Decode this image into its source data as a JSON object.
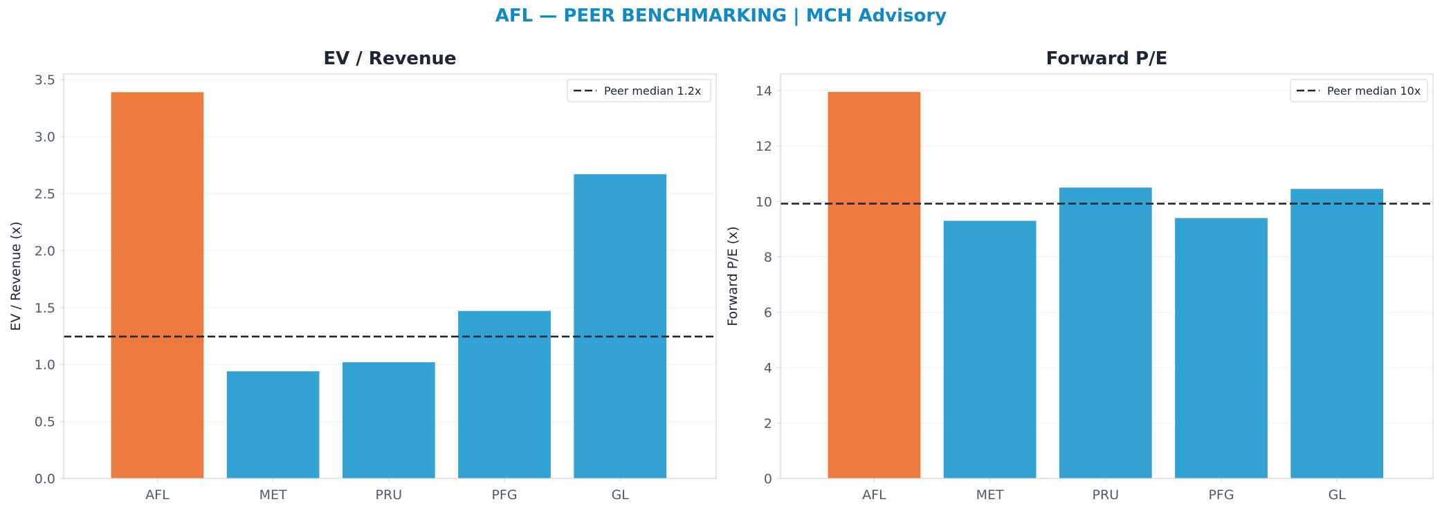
{
  "figure_title": "AFL — PEER BENCHMARKING | MCH Advisory",
  "colors": {
    "subject": "#ee7b3e",
    "peer": "#33a3d4",
    "median_line": "#1a2535",
    "title": "#1089c6",
    "axis_text": "#4d5a6b",
    "heading_text": "#1a2535",
    "spine": "#d0d4d9",
    "grid": "#eef0f2"
  },
  "chart_data": [
    {
      "type": "bar",
      "title": "EV / Revenue",
      "ylabel": "EV / Revenue (x)",
      "categories": [
        "AFL",
        "MET",
        "PRU",
        "PFG",
        "GL"
      ],
      "values": [
        3.39,
        0.94,
        1.02,
        1.47,
        2.67
      ],
      "highlight": "AFL",
      "ylim": [
        0,
        3.55
      ],
      "yticks": [
        0.0,
        0.5,
        1.0,
        1.5,
        2.0,
        2.5,
        3.0,
        3.5
      ],
      "ytick_labels": [
        "0.0",
        "0.5",
        "1.0",
        "1.5",
        "2.0",
        "2.5",
        "3.0",
        "3.5"
      ],
      "reference_line": {
        "value": 1.245,
        "label": "Peer median 1.2x",
        "style": "dashed"
      },
      "legend_position": "upper right",
      "grid": true
    },
    {
      "type": "bar",
      "title": "Forward P/E",
      "ylabel": "Forward P/E (x)",
      "categories": [
        "AFL",
        "MET",
        "PRU",
        "PFG",
        "GL"
      ],
      "values": [
        13.95,
        9.3,
        10.5,
        9.4,
        10.45
      ],
      "highlight": "AFL",
      "ylim": [
        0,
        14.6
      ],
      "yticks": [
        0,
        2,
        4,
        6,
        8,
        10,
        12,
        14
      ],
      "ytick_labels": [
        "0",
        "2",
        "4",
        "6",
        "8",
        "10",
        "12",
        "14"
      ],
      "reference_line": {
        "value": 9.92,
        "label": "Peer median 10x",
        "style": "dashed"
      },
      "legend_position": "upper right",
      "grid": true
    }
  ]
}
